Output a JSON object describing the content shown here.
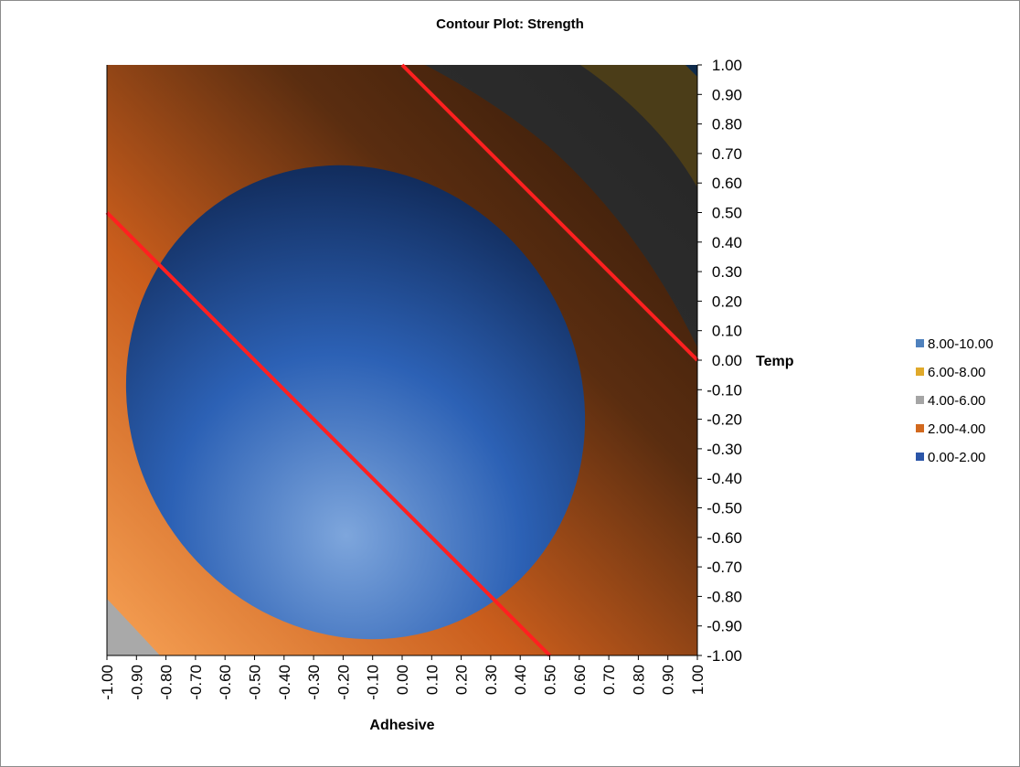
{
  "chart_data": {
    "type": "contour",
    "title": "Contour Plot:  Strength",
    "xlabel": "Adhesive",
    "ylabel": "Temp",
    "xlim": [
      -1.0,
      1.0
    ],
    "ylim": [
      -1.0,
      1.0
    ],
    "x_ticks": [
      "-1.00",
      "-0.90",
      "-0.80",
      "-0.70",
      "-0.60",
      "-0.50",
      "-0.40",
      "-0.30",
      "-0.20",
      "-0.10",
      "0.00",
      "0.10",
      "0.20",
      "0.30",
      "0.40",
      "0.50",
      "0.60",
      "0.70",
      "0.80",
      "0.90",
      "1.00"
    ],
    "y_ticks": [
      "1.00",
      "0.90",
      "0.80",
      "0.70",
      "0.60",
      "0.50",
      "0.40",
      "0.30",
      "0.20",
      "0.10",
      "0.00",
      "-0.10",
      "-0.20",
      "-0.30",
      "-0.40",
      "-0.50",
      "-0.60",
      "-0.70",
      "-0.80",
      "-0.90",
      "-1.00"
    ],
    "legend_position": "right",
    "legend": [
      {
        "label": "8.00-10.00",
        "color": "#4f81bd"
      },
      {
        "label": "6.00-8.00",
        "color": "#e0a92a"
      },
      {
        "label": "4.00-6.00",
        "color": "#a5a5a5"
      },
      {
        "label": "2.00-4.00",
        "color": "#d2691e"
      },
      {
        "label": "0.00-2.00",
        "color": "#2b55a8"
      }
    ],
    "bands": [
      {
        "range": "0.00-2.00",
        "color": "#1c4f9c"
      },
      {
        "range": "2.00-4.00",
        "color": "#e8782a"
      },
      {
        "range": "4.00-6.00",
        "color": "#a9a9a9"
      },
      {
        "range": "6.00-8.00",
        "color": "#4b3d18"
      },
      {
        "range": "8.00-10.00",
        "color": "#0e2a4a"
      }
    ],
    "reference_lines": [
      {
        "color": "#ff2020",
        "points": [
          [
            -1.0,
            0.5
          ],
          [
            0.5,
            -1.0
          ]
        ]
      },
      {
        "color": "#ff2020",
        "points": [
          [
            0.0,
            1.0
          ],
          [
            1.0,
            0.0
          ]
        ]
      }
    ]
  }
}
